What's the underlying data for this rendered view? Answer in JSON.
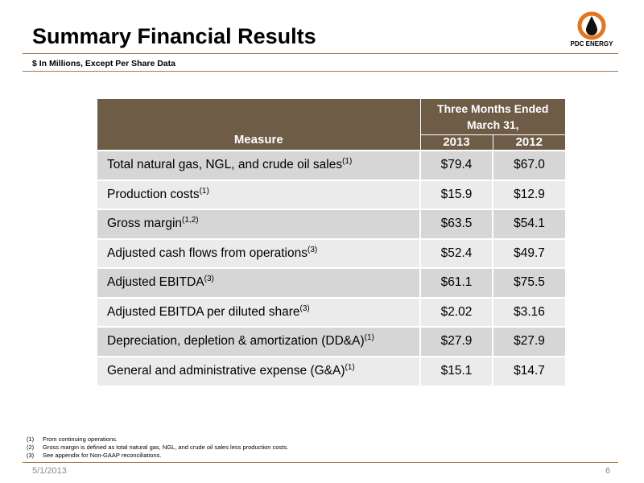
{
  "header": {
    "title": "Summary Financial Results",
    "subtitle": "$ In Millions, Except Per Share Data",
    "logo_text": "PDC ENERGY",
    "accent_color": "#a47a52",
    "logo_flame_color": "#e8731a"
  },
  "table": {
    "header_color": "#6e5c46",
    "row_colors": [
      "#d6d6d6",
      "#ebebeb"
    ],
    "measure_header": "Measure",
    "period_header": "Three Months Ended March 31,",
    "year_current": "2013",
    "year_prior": "2012",
    "rows": [
      {
        "measure": "Total natural gas, NGL, and crude oil sales",
        "note": "(1)",
        "v2013": "$79.4",
        "v2012": "$67.0"
      },
      {
        "measure": "Production costs",
        "note": "(1)",
        "v2013": "$15.9",
        "v2012": "$12.9"
      },
      {
        "measure": "Gross margin",
        "note": "(1,2)",
        "v2013": "$63.5",
        "v2012": "$54.1"
      },
      {
        "measure": "Adjusted cash flows from operations",
        "note": "(3)",
        "v2013": "$52.4",
        "v2012": "$49.7"
      },
      {
        "measure": "Adjusted EBITDA",
        "note": "(3)",
        "v2013": "$61.1",
        "v2012": "$75.5"
      },
      {
        "measure": "Adjusted EBITDA per diluted share",
        "note": "(3)",
        "v2013": "$2.02",
        "v2012": "$3.16"
      },
      {
        "measure": "Depreciation, depletion & amortization (DD&A)",
        "note": "(1)",
        "v2013": "$27.9",
        "v2012": "$27.9"
      },
      {
        "measure": "General and administrative expense (G&A)",
        "note": "(1)",
        "v2013": "$15.1",
        "v2012": "$14.7"
      }
    ]
  },
  "footnotes": [
    {
      "num": "(1)",
      "text": "From continuing operations."
    },
    {
      "num": "(2)",
      "text": "Gross margin is defined as total natural gas, NGL, and crude oil sales less production costs."
    },
    {
      "num": "(3)",
      "text": "See appendix for Non-GAAP reconciliations."
    }
  ],
  "footer": {
    "date": "5/1/2013",
    "page": "6"
  }
}
